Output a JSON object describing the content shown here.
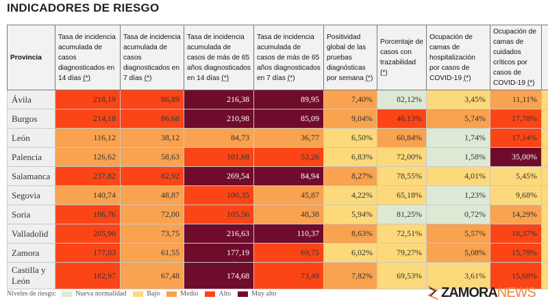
{
  "title": "INDICADORES DE RIESGO",
  "headers": [
    {
      "text": "Provincia",
      "note": ""
    },
    {
      "text": "Tasa de incidencia acumulada de casos diagnosticados en 14 días ",
      "note": "(*)"
    },
    {
      "text": "Tasa de incidencia acumulada de casos diagnosticados en 7 días ",
      "note": "(*)"
    },
    {
      "text": "Tasa de incidencia acumulada de casos de más de 65 años diagnosticados en 14 días ",
      "note": "(*)"
    },
    {
      "text": "Tasa de incidencia acumulada de casos de más de 65 años diagnosticados en 7 días ",
      "note": "(*)"
    },
    {
      "text": "Positividad global de las pruebas diagnósticas por semana ",
      "note": "(*)"
    },
    {
      "text": "Porcentaje de casos con trazabilidad ",
      "note": "(*)"
    },
    {
      "text": "Ocupación de camas de hospitalización por casos de COVID-19 ",
      "note": "(*)"
    },
    {
      "text": "Ocupación de camas de cuidados críticos por casos de COVID-19 ",
      "note": "(*)"
    }
  ],
  "rows": [
    {
      "province": "Ávila",
      "values": [
        "218,19",
        "86,89",
        "216,38",
        "89,95",
        "7,40%",
        "82,12%",
        "3,45%",
        "11,11%"
      ],
      "levels": [
        "A",
        "A",
        "V",
        "V",
        "M",
        "N",
        "B",
        "M"
      ]
    },
    {
      "province": "Burgos",
      "values": [
        "214,18",
        "86,68",
        "210,98",
        "85,09",
        "9,04%",
        "46,13%",
        "5,74%",
        "17,78%"
      ],
      "levels": [
        "A",
        "A",
        "V",
        "V",
        "M",
        "A",
        "M",
        "A"
      ]
    },
    {
      "province": "León",
      "values": [
        "116,12",
        "38,12",
        "84,73",
        "36,77",
        "6,50%",
        "60,84%",
        "1,74%",
        "17,14%"
      ],
      "levels": [
        "M",
        "M",
        "M",
        "M",
        "B",
        "M",
        "N",
        "A"
      ]
    },
    {
      "province": "Palencia",
      "values": [
        "126,62",
        "58,63",
        "101,68",
        "53,26",
        "6,83%",
        "72,00%",
        "1,58%",
        "35,00%"
      ],
      "levels": [
        "M",
        "M",
        "A",
        "A",
        "B",
        "B",
        "N",
        "V"
      ]
    },
    {
      "province": "Salamanca",
      "values": [
        "237,82",
        "82,92",
        "269,54",
        "84,94",
        "8,27%",
        "78,55%",
        "4,01%",
        "5,45%"
      ],
      "levels": [
        "A",
        "A",
        "V",
        "V",
        "M",
        "B",
        "B",
        "B"
      ]
    },
    {
      "province": "Segovia",
      "values": [
        "140,74",
        "48,87",
        "100,35",
        "45,87",
        "4,22%",
        "65,18%",
        "1,23%",
        "9,68%"
      ],
      "levels": [
        "M",
        "M",
        "A",
        "M",
        "B",
        "B",
        "N",
        "B"
      ]
    },
    {
      "province": "Soria",
      "values": [
        "186,76",
        "72,00",
        "105,56",
        "48,38",
        "5,94%",
        "81,25%",
        "0,72%",
        "14,29%"
      ],
      "levels": [
        "A",
        "M",
        "A",
        "M",
        "B",
        "N",
        "N",
        "M"
      ]
    },
    {
      "province": "Valladolid",
      "values": [
        "205,90",
        "73,75",
        "216,63",
        "110,37",
        "8,63%",
        "72,51%",
        "5,57%",
        "18,37%"
      ],
      "levels": [
        "A",
        "M",
        "V",
        "V",
        "M",
        "B",
        "M",
        "A"
      ]
    },
    {
      "province": "Zamora",
      "values": [
        "177,03",
        "61,55",
        "177,19",
        "69,75",
        "6,02%",
        "79,27%",
        "5,08%",
        "15,79%"
      ],
      "levels": [
        "A",
        "M",
        "V",
        "A",
        "B",
        "B",
        "M",
        "A"
      ]
    },
    {
      "province": "Castilla y León",
      "values": [
        "182,97",
        "67,48",
        "174,68",
        "73,49",
        "7,82%",
        "69,53%",
        "3,61%",
        "15,68%"
      ],
      "levels": [
        "A",
        "M",
        "V",
        "A",
        "M",
        "B",
        "B",
        "A"
      ]
    }
  ],
  "legend": {
    "label": "Niveles de riesgo:",
    "items": [
      {
        "key": "N",
        "label": "Nueva normalidad",
        "color": "#dde9d4"
      },
      {
        "key": "B",
        "label": "Bajo",
        "color": "#fcd97a"
      },
      {
        "key": "M",
        "label": "Medio",
        "color": "#f9a24f"
      },
      {
        "key": "A",
        "label": "Alto",
        "color": "#fb4516"
      },
      {
        "key": "V",
        "label": "Muy alto",
        "color": "#700c2b"
      }
    ]
  },
  "watermark": {
    "part1": "ZAMORA",
    "part2": "NEWS"
  }
}
